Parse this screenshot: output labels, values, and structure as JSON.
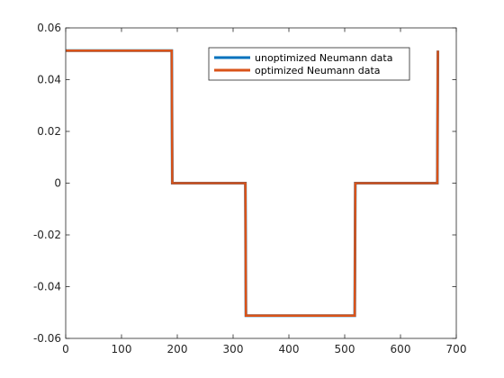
{
  "chart_data": {
    "type": "line",
    "title": "",
    "xlabel": "",
    "ylabel": "",
    "xlim": [
      0,
      700
    ],
    "ylim": [
      -0.06,
      0.06
    ],
    "xticks": [
      0,
      100,
      200,
      300,
      400,
      500,
      600,
      700
    ],
    "yticks": [
      -0.06,
      -0.04,
      -0.02,
      0,
      0.02,
      0.04,
      0.06
    ],
    "xtick_labels": [
      "0",
      "100",
      "200",
      "300",
      "400",
      "500",
      "600",
      "700"
    ],
    "ytick_labels": [
      "-0.06",
      "-0.04",
      "-0.02",
      "0",
      "0.02",
      "0.04",
      "0.06"
    ],
    "grid": false,
    "legend_position": "top-right",
    "series": [
      {
        "name": "unoptimized Neumann data",
        "color": "#0072BD",
        "x": [
          0,
          190,
          191,
          322,
          323,
          518,
          519,
          666,
          667
        ],
        "y": [
          0.0512,
          0.0512,
          0,
          0,
          -0.0512,
          -0.0512,
          0,
          0,
          0.0512
        ]
      },
      {
        "name": "optimized Neumann data",
        "color": "#D95319",
        "x": [
          0,
          190,
          191,
          322,
          323,
          518,
          519,
          666,
          667
        ],
        "y": [
          0.0512,
          0.0512,
          0,
          0,
          -0.0512,
          -0.0512,
          0,
          0,
          0.0512
        ]
      }
    ]
  }
}
